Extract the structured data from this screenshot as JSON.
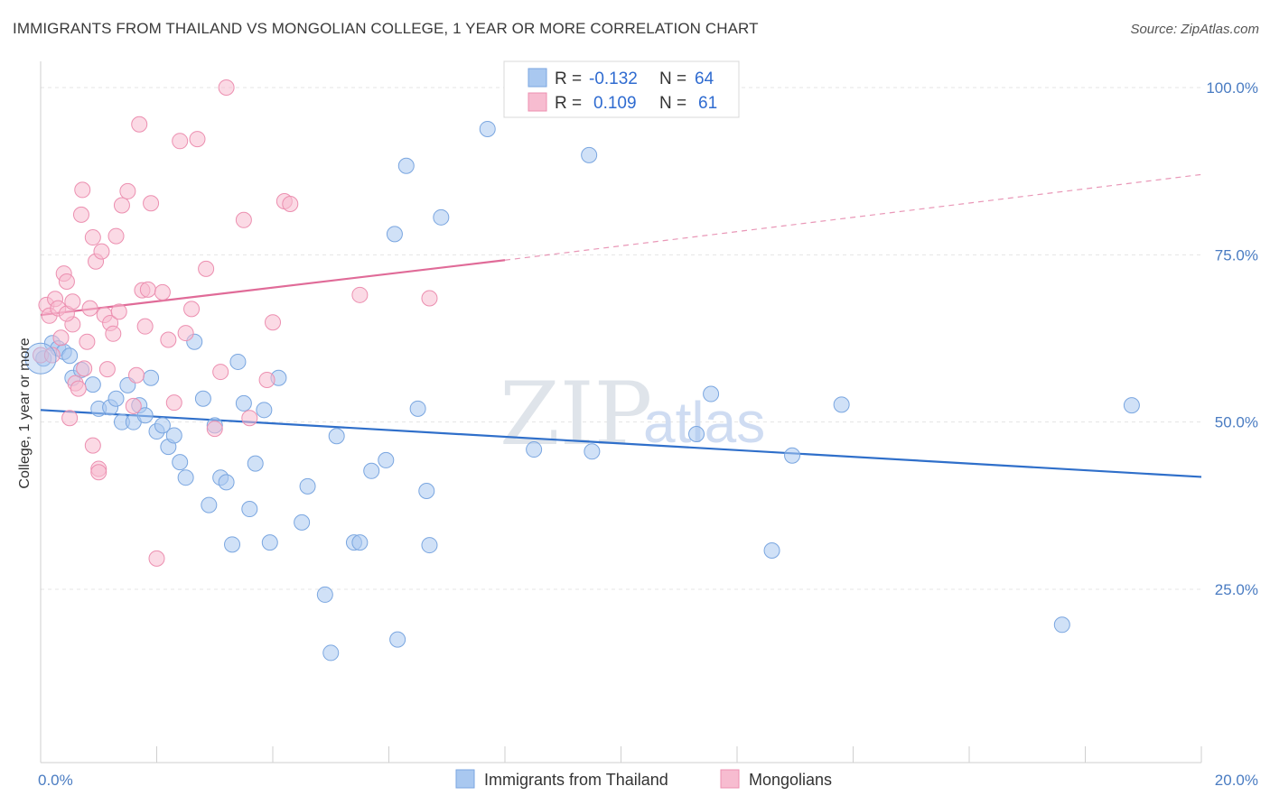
{
  "header": {
    "title": "IMMIGRANTS FROM THAILAND VS MONGOLIAN COLLEGE, 1 YEAR OR MORE CORRELATION CHART",
    "source": "Source: ZipAtlas.com"
  },
  "watermark": {
    "zip": "ZIP",
    "atlas": "atlas"
  },
  "legend": {
    "r_label": "R =",
    "n_label": "N =",
    "series": [
      {
        "name": "Immigrants from Thailand",
        "r": "-0.132",
        "n": "64",
        "color": "#a9c8f0",
        "stroke": "#7aa6e0"
      },
      {
        "name": "Mongolians",
        "r": "0.109",
        "n": "61",
        "color": "#f7bcd0",
        "stroke": "#ec8fb0"
      }
    ]
  },
  "chart_data": {
    "type": "scatter",
    "title": "IMMIGRANTS FROM THAILAND VS MONGOLIAN COLLEGE, 1 YEAR OR MORE CORRELATION CHART",
    "xlabel": "",
    "ylabel": "College, 1 year or more",
    "xlim": [
      0,
      20
    ],
    "ylim": [
      0,
      105
    ],
    "x_tick_labels": [
      "0.0%",
      "20.0%"
    ],
    "y_ticks": [
      25,
      50,
      75,
      100
    ],
    "y_tick_labels": [
      "25.0%",
      "50.0%",
      "75.0%",
      "100.0%"
    ],
    "grid": true,
    "series": [
      {
        "name": "Immigrants from Thailand",
        "color": "#a9c8f0",
        "line_color": "#2f6fca",
        "trend": {
          "x": [
            0,
            20
          ],
          "y": [
            51.8,
            41.8
          ]
        },
        "points": [
          [
            0.05,
            59.5
          ],
          [
            0.2,
            61.8
          ],
          [
            0.3,
            61.0
          ],
          [
            0.4,
            60.5
          ],
          [
            0.5,
            59.9
          ],
          [
            0.55,
            56.6
          ],
          [
            0.7,
            57.8
          ],
          [
            0.9,
            55.6
          ],
          [
            1.0,
            52.0
          ],
          [
            1.2,
            52.2
          ],
          [
            1.3,
            53.5
          ],
          [
            1.4,
            50.0
          ],
          [
            1.5,
            55.5
          ],
          [
            1.6,
            50.0
          ],
          [
            1.7,
            52.5
          ],
          [
            1.8,
            51.0
          ],
          [
            1.9,
            56.6
          ],
          [
            2.0,
            48.6
          ],
          [
            2.1,
            49.5
          ],
          [
            2.2,
            46.3
          ],
          [
            2.3,
            48.0
          ],
          [
            2.4,
            44.0
          ],
          [
            2.5,
            41.7
          ],
          [
            2.65,
            62.0
          ],
          [
            2.8,
            53.5
          ],
          [
            2.9,
            37.6
          ],
          [
            3.0,
            49.5
          ],
          [
            3.1,
            41.7
          ],
          [
            3.2,
            41.0
          ],
          [
            3.3,
            31.7
          ],
          [
            3.4,
            59.0
          ],
          [
            3.5,
            52.8
          ],
          [
            3.6,
            37.0
          ],
          [
            3.7,
            43.8
          ],
          [
            3.85,
            51.8
          ],
          [
            3.95,
            32.0
          ],
          [
            4.1,
            56.6
          ],
          [
            4.5,
            35.0
          ],
          [
            4.6,
            40.4
          ],
          [
            4.9,
            24.2
          ],
          [
            5.0,
            15.5
          ],
          [
            5.1,
            47.9
          ],
          [
            5.4,
            32.0
          ],
          [
            5.5,
            32.0
          ],
          [
            5.7,
            42.7
          ],
          [
            5.95,
            44.3
          ],
          [
            6.1,
            78.1
          ],
          [
            6.15,
            17.5
          ],
          [
            6.3,
            88.3
          ],
          [
            6.5,
            52.0
          ],
          [
            6.65,
            39.7
          ],
          [
            6.7,
            31.6
          ],
          [
            6.9,
            80.6
          ],
          [
            7.7,
            93.8
          ],
          [
            8.5,
            45.9
          ],
          [
            9.45,
            89.9
          ],
          [
            9.5,
            45.6
          ],
          [
            11.3,
            48.2
          ],
          [
            11.55,
            54.2
          ],
          [
            12.6,
            30.8
          ],
          [
            12.95,
            45.0
          ],
          [
            13.8,
            52.6
          ],
          [
            17.6,
            19.7
          ],
          [
            18.8,
            52.5
          ]
        ]
      },
      {
        "name": "Mongolians",
        "color": "#f7bcd0",
        "line_color": "#e06b98",
        "trend": {
          "x": [
            0,
            8.0,
            20
          ],
          "y": [
            66.0,
            74.2,
            87.0
          ],
          "dashed_from_x": 8.0
        },
        "points": [
          [
            0.0,
            60.0
          ],
          [
            0.1,
            67.5
          ],
          [
            0.15,
            65.9
          ],
          [
            0.25,
            68.4
          ],
          [
            0.3,
            67.0
          ],
          [
            0.35,
            62.6
          ],
          [
            0.4,
            72.2
          ],
          [
            0.45,
            71.0
          ],
          [
            0.5,
            50.6
          ],
          [
            0.55,
            64.6
          ],
          [
            0.6,
            55.8
          ],
          [
            0.7,
            81.0
          ],
          [
            0.72,
            84.7
          ],
          [
            0.8,
            62.0
          ],
          [
            0.85,
            67.0
          ],
          [
            0.9,
            77.6
          ],
          [
            0.95,
            74.0
          ],
          [
            1.0,
            43.0
          ],
          [
            1.05,
            75.5
          ],
          [
            1.1,
            66.0
          ],
          [
            1.15,
            57.9
          ],
          [
            1.2,
            64.8
          ],
          [
            1.3,
            77.8
          ],
          [
            1.4,
            82.4
          ],
          [
            1.5,
            84.5
          ],
          [
            1.6,
            52.4
          ],
          [
            1.65,
            57.0
          ],
          [
            1.7,
            94.5
          ],
          [
            1.75,
            69.7
          ],
          [
            1.8,
            64.3
          ],
          [
            1.85,
            69.8
          ],
          [
            1.9,
            82.7
          ],
          [
            2.0,
            29.6
          ],
          [
            2.1,
            69.4
          ],
          [
            2.2,
            62.3
          ],
          [
            2.3,
            52.9
          ],
          [
            2.4,
            92.0
          ],
          [
            2.5,
            63.3
          ],
          [
            2.6,
            66.9
          ],
          [
            2.7,
            92.3
          ],
          [
            2.85,
            72.9
          ],
          [
            3.0,
            49.0
          ],
          [
            3.1,
            57.5
          ],
          [
            3.2,
            100.0
          ],
          [
            3.5,
            80.2
          ],
          [
            3.6,
            50.6
          ],
          [
            3.9,
            56.3
          ],
          [
            4.0,
            64.9
          ],
          [
            4.2,
            83.0
          ],
          [
            4.3,
            82.6
          ],
          [
            5.5,
            69.0
          ],
          [
            6.7,
            68.5
          ],
          [
            0.9,
            46.5
          ],
          [
            1.0,
            42.5
          ],
          [
            0.2,
            60.0
          ],
          [
            0.45,
            66.2
          ],
          [
            0.55,
            68.0
          ],
          [
            0.75,
            58.0
          ],
          [
            1.25,
            63.2
          ],
          [
            1.35,
            66.5
          ],
          [
            0.65,
            55.0
          ]
        ]
      }
    ]
  }
}
